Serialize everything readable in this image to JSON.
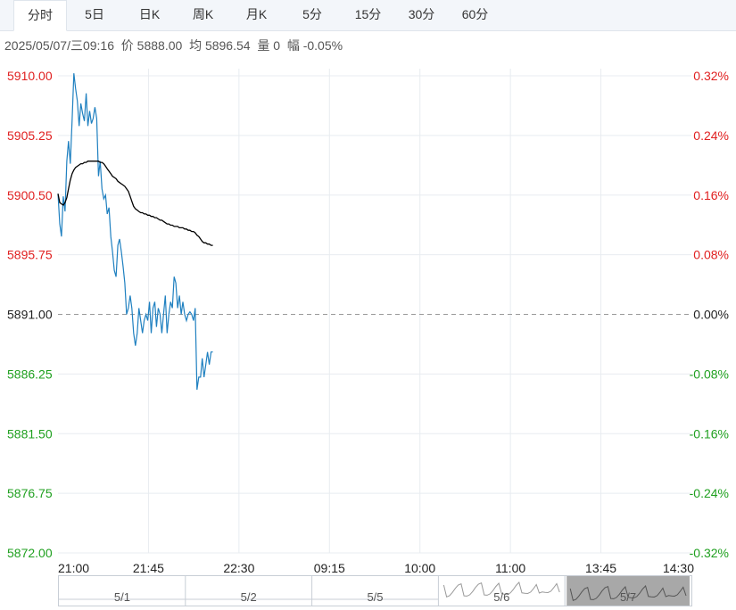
{
  "tabs": [
    {
      "label": "分时",
      "active": true
    },
    {
      "label": "5日",
      "active": false
    },
    {
      "label": "日K",
      "active": false
    },
    {
      "label": "周K",
      "active": false
    },
    {
      "label": "月K",
      "active": false
    },
    {
      "label": "5分",
      "active": false
    },
    {
      "label": "15分",
      "active": false
    },
    {
      "label": "30分",
      "active": false
    },
    {
      "label": "60分",
      "active": false
    }
  ],
  "info": {
    "datetime": "2025/05/07/三09:16",
    "price_label": "价",
    "price": "5888.00",
    "avg_label": "均",
    "avg": "5896.54",
    "vol_label": "量",
    "vol": "0",
    "chg_label": "幅",
    "chg": "-0.05%"
  },
  "colors": {
    "price_line": "#1f80c0",
    "avg_line": "#000000",
    "up": "#e02020",
    "down": "#20a020",
    "base": "#222222",
    "grid": "#e8ecf0"
  },
  "chart_data": {
    "type": "line",
    "base": 5891.0,
    "ylim": [
      5872.0,
      5910.0
    ],
    "y_ticks": [
      "5910.00",
      "5905.25",
      "5900.50",
      "5895.75",
      "5891.00",
      "5886.25",
      "5881.50",
      "5876.75",
      "5872.00"
    ],
    "pct_ticks": [
      "0.32%",
      "0.24%",
      "0.16%",
      "0.08%",
      "0.00%",
      "-0.08%",
      "-0.16%",
      "-0.24%",
      "-0.32%"
    ],
    "x_ticks": [
      "21:00",
      "21:45",
      "22:30",
      "09:15",
      "10:00",
      "11:00",
      "13:45",
      "14:30"
    ],
    "series": [
      {
        "key": "price",
        "values": [
          5900.6,
          5898.2,
          5897.2,
          5900.4,
          5899.2,
          5903.2,
          5904.8,
          5903.0,
          5906.4,
          5910.2,
          5909.0,
          5908.0,
          5906.0,
          5907.8,
          5907.0,
          5906.4,
          5908.6,
          5906.0,
          5907.2,
          5906.2,
          5906.6,
          5907.5,
          5906.6,
          5902.0,
          5903.2,
          5901.0,
          5900.2,
          5900.5,
          5899.0,
          5899.5,
          5897.2,
          5896.0,
          5894.5,
          5894.0,
          5896.5,
          5897.0,
          5896.0,
          5894.8,
          5893.5,
          5891.0,
          5891.5,
          5892.5,
          5891.5,
          5889.5,
          5888.5,
          5889.5,
          5891.5,
          5890.5,
          5889.5,
          5890.5,
          5891.0,
          5890.5,
          5892.0,
          5889.5,
          5891.5,
          5892.0,
          5890.0,
          5891.5,
          5891.0,
          5889.5,
          5891.0,
          5892.5,
          5889.5,
          5891.0,
          5892.0,
          5891.5,
          5894.0,
          5893.5,
          5891.5,
          5892.5,
          5891.0,
          5892.0,
          5891.0,
          5890.5,
          5891.0,
          5891.2,
          5891.0,
          5890.5,
          5891.5,
          5885.0,
          5886.0,
          5886.0,
          5887.5,
          5886.0,
          5887.0,
          5888.0,
          5887.0,
          5888.0,
          5888.0
        ]
      },
      {
        "key": "avg",
        "values": [
          5900.6,
          5899.9,
          5899.8,
          5899.7,
          5899.9,
          5900.3,
          5901.0,
          5901.7,
          5902.2,
          5902.5,
          5902.7,
          5902.8,
          5902.9,
          5903.0,
          5903.0,
          5903.1,
          5903.1,
          5903.2,
          5903.2,
          5903.2,
          5903.2,
          5903.2,
          5903.2,
          5903.2,
          5903.1,
          5903.1,
          5903.0,
          5902.8,
          5902.6,
          5902.4,
          5902.2,
          5902.0,
          5901.9,
          5901.8,
          5901.6,
          5901.5,
          5901.4,
          5901.3,
          5901.2,
          5901.0,
          5900.8,
          5900.4,
          5900.0,
          5899.6,
          5899.4,
          5899.3,
          5899.2,
          5899.1,
          5899.1,
          5899.0,
          5899.0,
          5898.9,
          5898.9,
          5898.8,
          5898.8,
          5898.7,
          5898.7,
          5898.6,
          5898.5,
          5898.5,
          5898.4,
          5898.3,
          5898.2,
          5898.2,
          5898.1,
          5898.1,
          5898.0,
          5898.0,
          5898.0,
          5897.9,
          5897.9,
          5897.9,
          5897.8,
          5897.8,
          5897.7,
          5897.7,
          5897.6,
          5897.6,
          5897.5,
          5897.3,
          5897.2,
          5897.0,
          5896.8,
          5896.7,
          5896.7,
          5896.6,
          5896.6,
          5896.5,
          5896.5
        ]
      }
    ],
    "total_slots": 360
  },
  "navigator": {
    "labels": [
      "5/1",
      "5/2",
      "5/5",
      "5/6",
      "5/7"
    ]
  }
}
